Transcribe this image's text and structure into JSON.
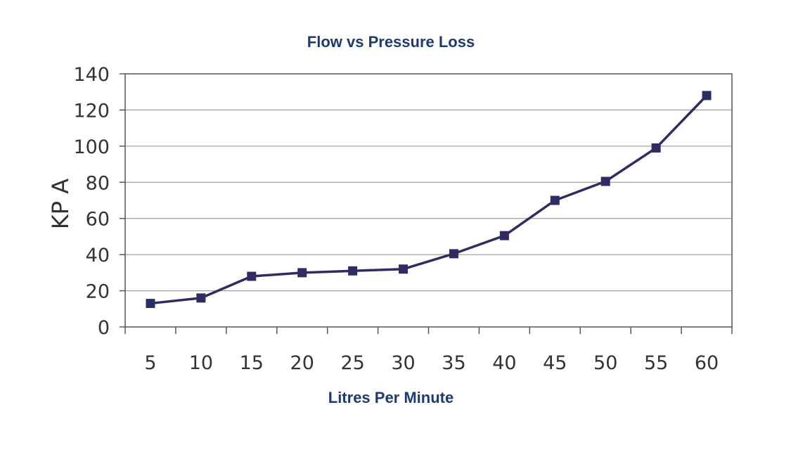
{
  "chart_data": {
    "type": "line",
    "title": "Flow vs Pressure Loss",
    "xlabel": "Litres Per Minute",
    "ylabel": "KP A",
    "categories": [
      "5",
      "10",
      "15",
      "20",
      "25",
      "30",
      "35",
      "40",
      "45",
      "50",
      "55",
      "60"
    ],
    "series": [
      {
        "values": [
          13,
          16,
          28,
          30,
          31,
          32,
          40.5,
          50.5,
          70,
          80.5,
          99,
          128
        ]
      }
    ],
    "ylim": [
      0,
      140
    ],
    "yticks": [
      "0",
      "20",
      "40",
      "60",
      "80",
      "100",
      "120",
      "140"
    ],
    "grid": true,
    "legend": "none",
    "line_color": "#2e2d63",
    "marker": "square",
    "title_color": "#1f3a6e"
  }
}
